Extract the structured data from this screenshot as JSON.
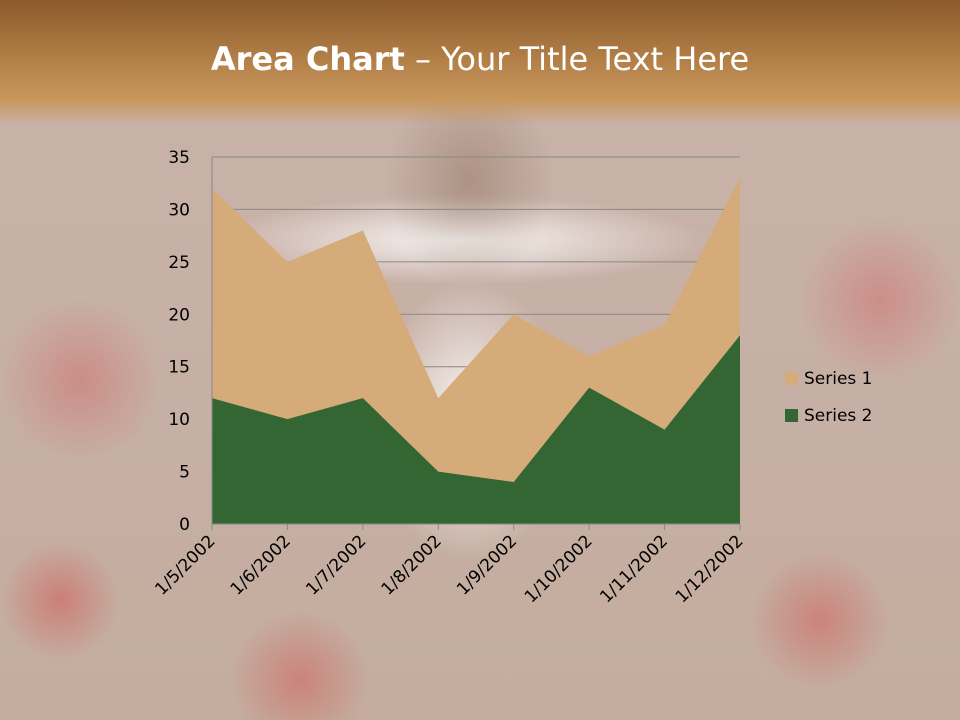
{
  "slide": {
    "title_bold": "Area Chart",
    "title_rest": " – Your Title Text Here"
  },
  "chart_data": {
    "type": "area",
    "title": "",
    "categories": [
      "1/5/2002",
      "1/6/2002",
      "1/7/2002",
      "1/8/2002",
      "1/9/2002",
      "1/10/2002",
      "1/11/2002",
      "1/12/2002"
    ],
    "series": [
      {
        "name": "Series 1",
        "values": [
          32,
          25,
          28,
          12,
          20,
          16,
          19,
          33
        ],
        "color": "#d6ab7a"
      },
      {
        "name": "Series 2",
        "values": [
          12,
          10,
          12,
          5,
          4,
          13,
          9,
          18
        ],
        "color": "#346634"
      }
    ],
    "ylim": [
      0,
      35
    ],
    "yticks": [
      0,
      5,
      10,
      15,
      20,
      25,
      30,
      35
    ],
    "grid": true,
    "legend": "right"
  }
}
